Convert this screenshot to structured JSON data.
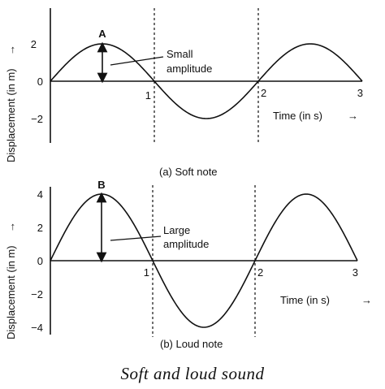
{
  "figure_title": "Soft and loud sound",
  "chart_data": [
    {
      "type": "line",
      "caption": "(a) Soft note",
      "xlabel": "Time (in s)",
      "ylabel": "Displacement (in m)",
      "arrow": "→",
      "xlim": [
        0,
        3
      ],
      "ylim": [
        -3,
        3
      ],
      "x_ticks": [
        1,
        2,
        3
      ],
      "y_ticks": [
        2,
        0,
        -2
      ],
      "peak_label": "A",
      "annotation": [
        "Small",
        "amplitude"
      ],
      "amplitude": 2,
      "period": 2,
      "series": [
        {
          "x": [
            0,
            0.25,
            0.5,
            0.75,
            1,
            1.25,
            1.5,
            1.75,
            2,
            2.25,
            2.5,
            2.75,
            3
          ],
          "y": [
            0,
            1.41,
            2,
            1.41,
            0,
            -1.41,
            -2,
            -1.41,
            0,
            1.41,
            2,
            1.41,
            0
          ]
        }
      ],
      "dashed_vertical_lines_at": [
        1,
        2
      ]
    },
    {
      "type": "line",
      "caption": "(b) Loud note",
      "xlabel": "Time (in s)",
      "ylabel": "Displacement (in m)",
      "arrow": "→",
      "xlim": [
        0,
        3
      ],
      "ylim": [
        -4.5,
        4.5
      ],
      "x_ticks": [
        1,
        2,
        3
      ],
      "y_ticks": [
        4,
        2,
        0,
        -2,
        -4
      ],
      "peak_label": "B",
      "annotation": [
        "Large",
        "amplitude"
      ],
      "amplitude": 4,
      "period": 2,
      "series": [
        {
          "x": [
            0,
            0.25,
            0.5,
            0.75,
            1,
            1.25,
            1.5,
            1.75,
            2,
            2.25,
            2.5,
            2.75,
            3
          ],
          "y": [
            0,
            2.83,
            4,
            2.83,
            0,
            -2.83,
            -4,
            -2.83,
            0,
            2.83,
            4,
            2.83,
            0
          ]
        }
      ],
      "dashed_vertical_lines_at": [
        1,
        2
      ]
    }
  ]
}
